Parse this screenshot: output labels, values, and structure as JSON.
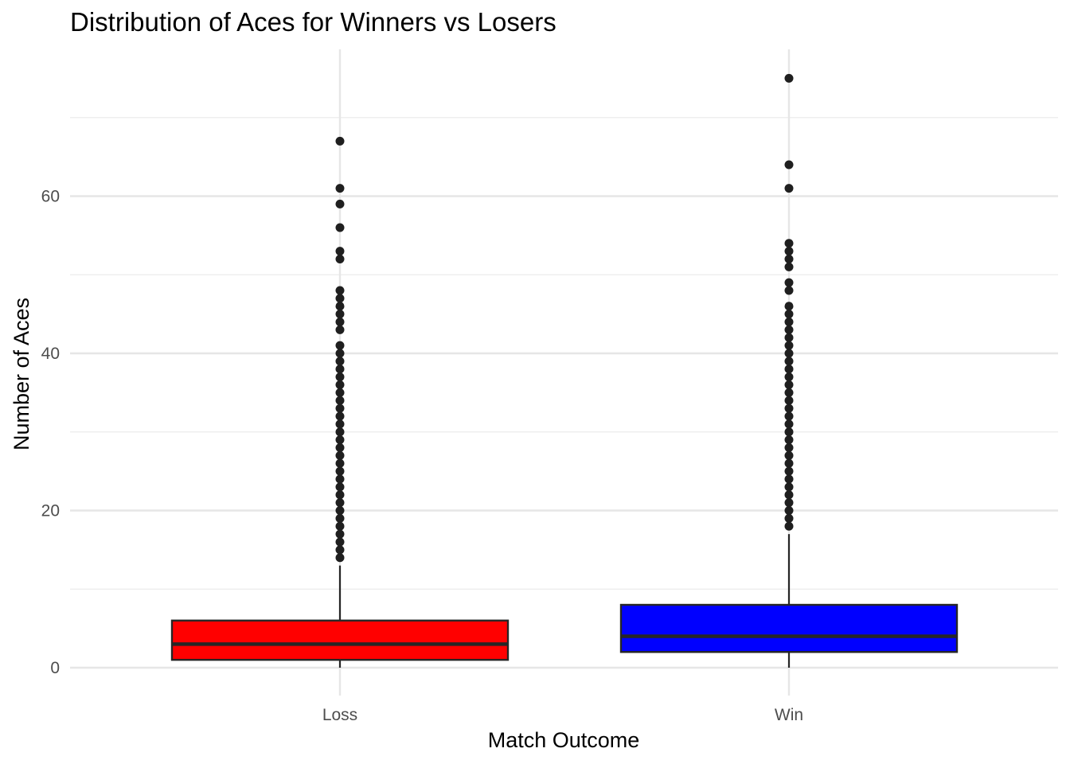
{
  "chart_data": {
    "type": "boxplot",
    "title": "Distribution of Aces for Winners vs Losers",
    "xlabel": "Match Outcome",
    "ylabel": "Number of Aces",
    "categories": [
      "Loss",
      "Win"
    ],
    "ylim": [
      -3,
      78
    ],
    "y_ticks": [
      0,
      20,
      40,
      60
    ],
    "y_tick_labels": [
      "0",
      "20",
      "40",
      "60"
    ],
    "grid": true,
    "legend": "none",
    "boxes": [
      {
        "category": "Loss",
        "color": "#ff0000",
        "min": 0,
        "q1": 1,
        "median": 3,
        "q3": 6,
        "max": 13,
        "outliers": [
          14,
          15,
          16,
          17,
          18,
          19,
          20,
          21,
          22,
          23,
          24,
          25,
          26,
          27,
          28,
          29,
          30,
          31,
          32,
          33,
          34,
          35,
          36,
          37,
          38,
          39,
          40,
          41,
          43,
          44,
          45,
          46,
          47,
          48,
          52,
          53,
          56,
          59,
          61,
          67
        ]
      },
      {
        "category": "Win",
        "color": "#0000ff",
        "min": 0,
        "q1": 2,
        "median": 4,
        "q3": 8,
        "max": 17,
        "outliers": [
          18,
          19,
          20,
          21,
          22,
          23,
          24,
          25,
          26,
          27,
          28,
          29,
          30,
          31,
          32,
          33,
          34,
          35,
          36,
          37,
          38,
          39,
          40,
          41,
          42,
          43,
          44,
          45,
          46,
          48,
          49,
          51,
          52,
          53,
          54,
          61,
          64,
          75
        ]
      }
    ]
  }
}
